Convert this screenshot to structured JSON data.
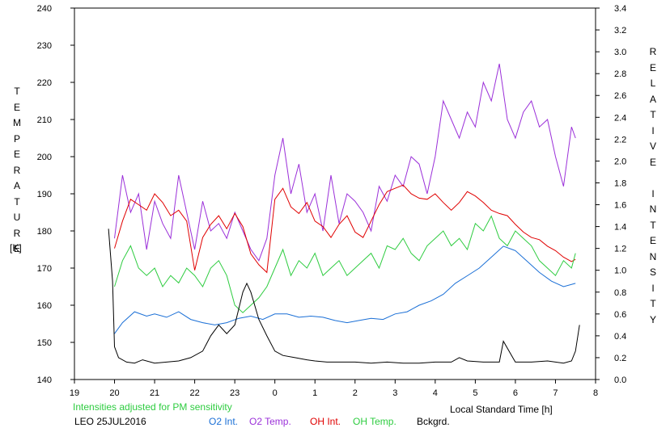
{
  "chart_data": {
    "type": "line",
    "y_left_label": "TEMPERATURE",
    "y_left_unit": "[K]",
    "y_right_label": "RELATIVE INTENSITY",
    "x_label": "Local Standard Time [h]",
    "note": "Intensities adjusted for PM sensitivity",
    "station_date": "LEO 25JUL2016",
    "ylim_left": [
      140,
      240
    ],
    "ylim_right": [
      0.0,
      3.4
    ],
    "xlim": [
      19,
      32
    ],
    "x_ticks": [
      19,
      20,
      21,
      22,
      23,
      24,
      25,
      26,
      27,
      28,
      29,
      30,
      31,
      32
    ],
    "x_tick_labels": [
      "19",
      "20",
      "21",
      "22",
      "23",
      "0",
      "1",
      "2",
      "3",
      "4",
      "5",
      "6",
      "7",
      "8"
    ],
    "y_left_ticks": [
      140,
      150,
      160,
      170,
      180,
      190,
      200,
      210,
      220,
      230,
      240
    ],
    "y_right_ticks": [
      "0.0",
      "0.2",
      "0.4",
      "0.6",
      "0.8",
      "1.0",
      "1.2",
      "1.4",
      "1.6",
      "1.8",
      "2.0",
      "2.2",
      "2.4",
      "2.6",
      "2.8",
      "3.0",
      "3.2",
      "3.4"
    ],
    "grid": false,
    "series": [
      {
        "name": "O2 Int.",
        "axis": "right",
        "color": "#1a6fd6",
        "x": [
          20.0,
          20.2,
          20.5,
          20.8,
          21.0,
          21.3,
          21.6,
          21.9,
          22.2,
          22.5,
          22.8,
          23.1,
          23.4,
          23.7,
          24.0,
          24.3,
          24.6,
          24.9,
          25.2,
          25.5,
          25.8,
          26.1,
          26.4,
          26.7,
          27.0,
          27.3,
          27.6,
          27.9,
          28.2,
          28.5,
          28.8,
          29.1,
          29.4,
          29.7,
          30.0,
          30.3,
          30.6,
          30.9,
          31.2,
          31.5
        ],
        "y": [
          0.42,
          0.52,
          0.62,
          0.58,
          0.6,
          0.57,
          0.62,
          0.55,
          0.52,
          0.5,
          0.52,
          0.56,
          0.58,
          0.55,
          0.6,
          0.6,
          0.57,
          0.58,
          0.57,
          0.54,
          0.52,
          0.54,
          0.56,
          0.55,
          0.6,
          0.62,
          0.68,
          0.72,
          0.78,
          0.88,
          0.95,
          1.02,
          1.12,
          1.22,
          1.18,
          1.08,
          0.98,
          0.9,
          0.85,
          0.88
        ]
      },
      {
        "name": "O2 Temp.",
        "axis": "left",
        "color": "#9b30d9",
        "x": [
          20.0,
          20.2,
          20.4,
          20.6,
          20.8,
          21.0,
          21.2,
          21.4,
          21.6,
          21.8,
          22.0,
          22.2,
          22.4,
          22.6,
          22.8,
          23.0,
          23.2,
          23.4,
          23.6,
          23.8,
          24.0,
          24.2,
          24.4,
          24.6,
          24.8,
          25.0,
          25.2,
          25.4,
          25.6,
          25.8,
          26.0,
          26.2,
          26.4,
          26.6,
          26.8,
          27.0,
          27.2,
          27.4,
          27.6,
          27.8,
          28.0,
          28.2,
          28.4,
          28.6,
          28.8,
          29.0,
          29.2,
          29.4,
          29.6,
          29.8,
          30.0,
          30.2,
          30.4,
          30.6,
          30.8,
          31.0,
          31.2,
          31.4,
          31.5
        ],
        "y": [
          178,
          195,
          185,
          190,
          175,
          188,
          182,
          178,
          195,
          185,
          175,
          188,
          180,
          182,
          178,
          185,
          180,
          175,
          172,
          178,
          195,
          205,
          190,
          198,
          185,
          190,
          180,
          195,
          182,
          190,
          188,
          185,
          180,
          192,
          188,
          195,
          192,
          200,
          198,
          190,
          200,
          215,
          210,
          205,
          212,
          208,
          220,
          215,
          225,
          210,
          205,
          212,
          215,
          208,
          210,
          200,
          192,
          208,
          205
        ]
      },
      {
        "name": "OH Int.",
        "axis": "right",
        "color": "#e00000",
        "x": [
          20.0,
          20.2,
          20.4,
          20.6,
          20.8,
          21.0,
          21.2,
          21.4,
          21.6,
          21.8,
          22.0,
          22.2,
          22.4,
          22.6,
          22.8,
          23.0,
          23.2,
          23.4,
          23.6,
          23.8,
          24.0,
          24.2,
          24.4,
          24.6,
          24.8,
          25.0,
          25.2,
          25.4,
          25.6,
          25.8,
          26.0,
          26.2,
          26.4,
          26.6,
          26.8,
          27.0,
          27.2,
          27.4,
          27.6,
          27.8,
          28.0,
          28.2,
          28.4,
          28.6,
          28.8,
          29.0,
          29.2,
          29.4,
          29.6,
          29.8,
          30.0,
          30.2,
          30.4,
          30.6,
          30.8,
          31.0,
          31.2,
          31.4,
          31.5
        ],
        "y": [
          1.2,
          1.45,
          1.65,
          1.6,
          1.55,
          1.7,
          1.62,
          1.5,
          1.55,
          1.45,
          1.0,
          1.3,
          1.42,
          1.5,
          1.38,
          1.52,
          1.4,
          1.15,
          1.05,
          0.98,
          1.65,
          1.75,
          1.58,
          1.52,
          1.62,
          1.45,
          1.4,
          1.3,
          1.42,
          1.5,
          1.35,
          1.3,
          1.45,
          1.6,
          1.72,
          1.75,
          1.78,
          1.7,
          1.66,
          1.65,
          1.7,
          1.62,
          1.55,
          1.62,
          1.72,
          1.68,
          1.62,
          1.55,
          1.52,
          1.5,
          1.42,
          1.35,
          1.3,
          1.28,
          1.22,
          1.18,
          1.12,
          1.08,
          1.1
        ]
      },
      {
        "name": "OH Temp.",
        "axis": "left",
        "color": "#2ecc40",
        "x": [
          20.0,
          20.2,
          20.4,
          20.6,
          20.8,
          21.0,
          21.2,
          21.4,
          21.6,
          21.8,
          22.0,
          22.2,
          22.4,
          22.6,
          22.8,
          23.0,
          23.2,
          23.4,
          23.6,
          23.8,
          24.0,
          24.2,
          24.4,
          24.6,
          24.8,
          25.0,
          25.2,
          25.4,
          25.6,
          25.8,
          26.0,
          26.2,
          26.4,
          26.6,
          26.8,
          27.0,
          27.2,
          27.4,
          27.6,
          27.8,
          28.0,
          28.2,
          28.4,
          28.6,
          28.8,
          29.0,
          29.2,
          29.4,
          29.6,
          29.8,
          30.0,
          30.2,
          30.4,
          30.6,
          30.8,
          31.0,
          31.2,
          31.4,
          31.5
        ],
        "y": [
          165,
          172,
          176,
          170,
          168,
          170,
          165,
          168,
          166,
          170,
          168,
          165,
          170,
          172,
          168,
          160,
          158,
          160,
          162,
          165,
          170,
          175,
          168,
          172,
          170,
          174,
          168,
          170,
          172,
          168,
          170,
          172,
          174,
          170,
          176,
          175,
          178,
          174,
          172,
          176,
          178,
          180,
          176,
          178,
          175,
          182,
          180,
          184,
          178,
          176,
          180,
          178,
          176,
          172,
          170,
          168,
          172,
          170,
          174
        ]
      },
      {
        "name": "Bckgrd.",
        "axis": "right",
        "color": "#000000",
        "x": [
          19.85,
          19.95,
          20.0,
          20.1,
          20.3,
          20.5,
          20.7,
          21.0,
          21.3,
          21.6,
          21.9,
          22.2,
          22.4,
          22.6,
          22.8,
          23.0,
          23.2,
          23.3,
          23.4,
          23.6,
          23.8,
          24.0,
          24.2,
          24.5,
          24.8,
          25.0,
          25.3,
          25.6,
          26.0,
          26.4,
          26.8,
          27.2,
          27.6,
          28.0,
          28.4,
          28.6,
          28.8,
          29.2,
          29.6,
          29.7,
          30.0,
          30.4,
          30.8,
          31.2,
          31.4,
          31.5,
          31.6
        ],
        "y": [
          1.38,
          0.9,
          0.3,
          0.2,
          0.16,
          0.15,
          0.18,
          0.15,
          0.16,
          0.17,
          0.2,
          0.26,
          0.4,
          0.5,
          0.42,
          0.5,
          0.8,
          0.88,
          0.8,
          0.55,
          0.4,
          0.26,
          0.22,
          0.2,
          0.18,
          0.17,
          0.16,
          0.16,
          0.16,
          0.15,
          0.16,
          0.15,
          0.15,
          0.16,
          0.16,
          0.2,
          0.17,
          0.16,
          0.16,
          0.35,
          0.16,
          0.16,
          0.17,
          0.15,
          0.17,
          0.26,
          0.5
        ]
      }
    ]
  },
  "colors": {
    "note": "#2ecc40",
    "O2Int": "#1a6fd6",
    "O2Temp": "#9b30d9",
    "OHInt": "#e00000",
    "OHTemp": "#2ecc40",
    "Bckgrd": "#000000"
  }
}
